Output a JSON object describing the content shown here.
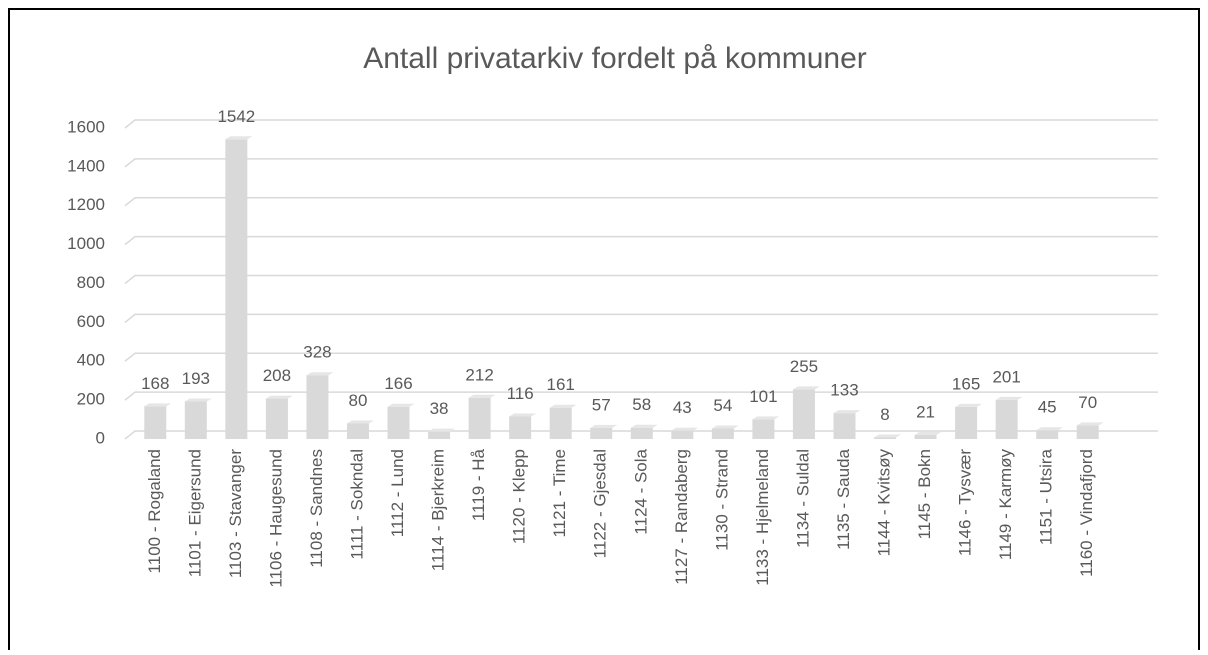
{
  "chart_data": {
    "type": "bar",
    "title": "Antall privatarkiv fordelt på kommuner",
    "categories": [
      "1100 - Rogaland",
      "1101 - Eigersund",
      "1103 - Stavanger",
      "1106 - Haugesund",
      "1108 - Sandnes",
      "1111 - Sokndal",
      "1112 - Lund",
      "1114 - Bjerkreim",
      "1119 - Hå",
      "1120 - Klepp",
      "1121 - Time",
      "1122 - Gjesdal",
      "1124 - Sola",
      "1127 - Randaberg",
      "1130 - Strand",
      "1133 - Hjelmeland",
      "1134 - Suldal",
      "1135 - Sauda",
      "1144 - Kvitsøy",
      "1145 - Bokn",
      "1146 - Tysvær",
      "1149 - Karmøy",
      "1151 - Utsira",
      "1160 - Vindafjord"
    ],
    "values": [
      168,
      193,
      1542,
      208,
      328,
      80,
      166,
      38,
      212,
      116,
      161,
      57,
      58,
      43,
      54,
      101,
      255,
      133,
      8,
      21,
      165,
      201,
      45,
      70
    ],
    "color": "#d9d9d9",
    "ylim": [
      0,
      1600
    ],
    "yticks": [
      0,
      200,
      400,
      600,
      800,
      1000,
      1200,
      1400,
      1600
    ],
    "grid": true
  }
}
